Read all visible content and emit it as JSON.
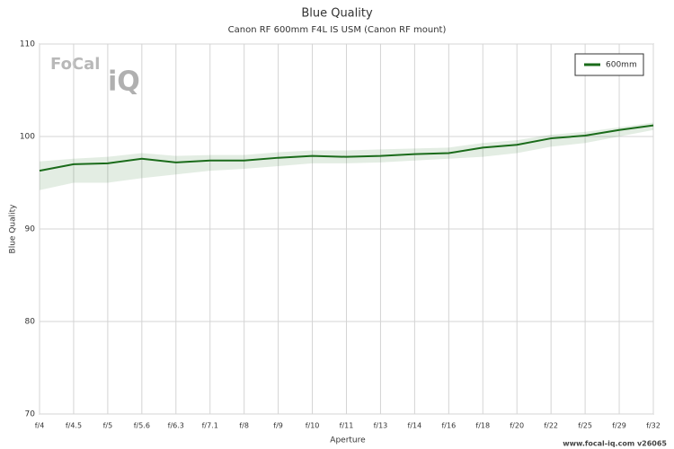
{
  "chart_data": {
    "type": "line",
    "title": "Blue Quality",
    "subtitle": "Canon RF 600mm F4L IS USM (Canon RF mount)",
    "x_label": "Aperture",
    "y_label": "Blue Quality",
    "categories": [
      "f/4",
      "f/4.5",
      "f/5",
      "f/5.6",
      "f/6.3",
      "f/7.1",
      "f/8",
      "f/9",
      "f/10",
      "f/11",
      "f/13",
      "f/14",
      "f/16",
      "f/18",
      "f/20",
      "f/22",
      "f/25",
      "f/29",
      "f/32"
    ],
    "series": [
      {
        "name": "600mm",
        "color": "#1a6b1a",
        "values": [
          96.3,
          97.0,
          97.1,
          97.6,
          97.2,
          97.4,
          97.4,
          97.7,
          97.9,
          97.8,
          97.9,
          98.1,
          98.2,
          98.8,
          99.1,
          99.8,
          100.1,
          100.7,
          101.2
        ],
        "band_upper": [
          97.3,
          97.6,
          97.8,
          98.2,
          97.9,
          98.0,
          98.0,
          98.3,
          98.5,
          98.5,
          98.6,
          98.7,
          98.8,
          99.3,
          99.6,
          100.2,
          100.5,
          101.0,
          101.5
        ],
        "band_lower": [
          94.2,
          95.0,
          95.0,
          95.5,
          95.9,
          96.3,
          96.5,
          96.8,
          97.1,
          97.1,
          97.2,
          97.4,
          97.6,
          97.8,
          98.2,
          98.9,
          99.3,
          100.0,
          100.7
        ]
      }
    ],
    "ylim": [
      70,
      110
    ],
    "yticks": [
      70,
      80,
      90,
      100,
      110
    ],
    "grid": true,
    "legend": "top-right",
    "logo": [
      "FoCal",
      "iQ"
    ],
    "footer": "www.focal-iq.com  v26065"
  }
}
